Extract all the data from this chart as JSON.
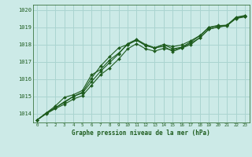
{
  "title": "Graphe pression niveau de la mer (hPa)",
  "background_color": "#cceae7",
  "grid_color": "#aad4d0",
  "line_color": "#1e5c1e",
  "marker_color": "#1e5c1e",
  "xlim": [
    -0.5,
    23.5
  ],
  "ylim": [
    1013.5,
    1020.3
  ],
  "xticks": [
    0,
    1,
    2,
    3,
    4,
    5,
    6,
    7,
    8,
    9,
    10,
    11,
    12,
    13,
    14,
    15,
    16,
    17,
    18,
    19,
    20,
    21,
    22,
    23
  ],
  "yticks": [
    1014,
    1015,
    1016,
    1017,
    1018,
    1019,
    1020
  ],
  "series": [
    [
      1013.65,
      1014.05,
      1014.35,
      1014.65,
      1015.0,
      1015.25,
      1016.05,
      1016.75,
      1017.3,
      1017.8,
      1018.0,
      1018.25,
      1017.95,
      1017.8,
      1018.0,
      1017.75,
      1017.85,
      1018.15,
      1018.5,
      1019.0,
      1019.1,
      1019.1,
      1019.55,
      1019.65
    ],
    [
      1013.65,
      1014.05,
      1014.45,
      1014.95,
      1015.1,
      1015.35,
      1016.25,
      1016.55,
      1017.1,
      1017.5,
      1018.0,
      1018.25,
      1017.95,
      1017.8,
      1017.9,
      1017.6,
      1017.8,
      1018.0,
      1018.4,
      1018.9,
      1019.0,
      1019.1,
      1019.5,
      1019.6
    ],
    [
      1013.65,
      1014.05,
      1014.35,
      1014.7,
      1015.0,
      1015.2,
      1015.85,
      1016.45,
      1016.95,
      1017.45,
      1018.05,
      1018.3,
      1018.0,
      1017.82,
      1018.0,
      1017.88,
      1017.98,
      1018.22,
      1018.52,
      1018.98,
      1019.08,
      1019.12,
      1019.58,
      1019.68
    ],
    [
      1013.65,
      1014.0,
      1014.3,
      1014.55,
      1014.85,
      1015.05,
      1015.65,
      1016.25,
      1016.65,
      1017.15,
      1017.75,
      1018.05,
      1017.75,
      1017.62,
      1017.78,
      1017.68,
      1017.82,
      1018.08,
      1018.38,
      1018.88,
      1019.02,
      1019.08,
      1019.52,
      1019.62
    ]
  ]
}
